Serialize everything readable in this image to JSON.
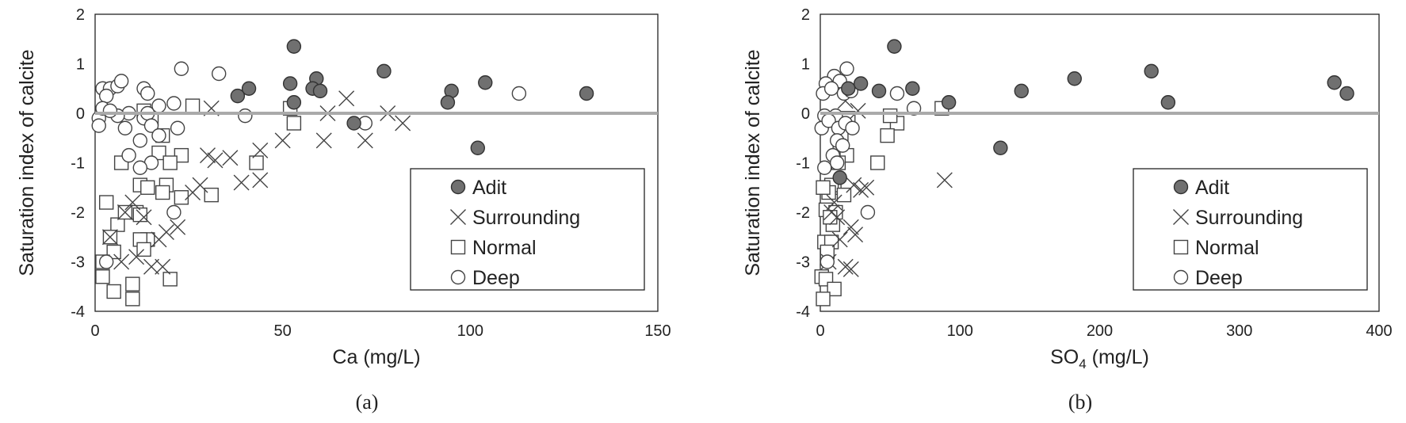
{
  "chart_data": [
    {
      "type": "scatter",
      "caption": "(a)",
      "xlabel": "Ca (mg/L)",
      "ylabel": "Saturation index of calcite",
      "xlim": [
        0,
        150
      ],
      "ylim": [
        -4,
        2
      ],
      "xticks": [
        "0",
        "50",
        "100",
        "150"
      ],
      "yticks": [
        "-4",
        "-3",
        "-2",
        "-1",
        "0",
        "1",
        "2"
      ],
      "reference_line": {
        "y": 0,
        "color": "#aaaaaa"
      },
      "legend": {
        "position": "bottom-right"
      },
      "series": [
        {
          "name": "Adit",
          "marker": "filled-circle",
          "color": "#707070",
          "points": [
            [
              53,
              1.35
            ],
            [
              52,
              0.6
            ],
            [
              59,
              0.7
            ],
            [
              58,
              0.5
            ],
            [
              60,
              0.45
            ],
            [
              53,
              0.22
            ],
            [
              41,
              0.5
            ],
            [
              38,
              0.35
            ],
            [
              77,
              0.85
            ],
            [
              95,
              0.45
            ],
            [
              94,
              0.22
            ],
            [
              104,
              0.62
            ],
            [
              102,
              -0.7
            ],
            [
              131,
              0.4
            ],
            [
              69,
              -0.2
            ]
          ]
        },
        {
          "name": "Surrounding",
          "marker": "x",
          "color": "#444444",
          "points": [
            [
              31,
              0.1
            ],
            [
              67,
              0.3
            ],
            [
              62,
              0.0
            ],
            [
              78,
              0.0
            ],
            [
              82,
              -0.2
            ],
            [
              61,
              -0.55
            ],
            [
              72,
              -0.55
            ],
            [
              50,
              -0.55
            ],
            [
              44,
              -0.75
            ],
            [
              36,
              -0.9
            ],
            [
              32,
              -0.95
            ],
            [
              30,
              -0.85
            ],
            [
              39,
              -1.4
            ],
            [
              44,
              -1.35
            ],
            [
              28,
              -1.45
            ],
            [
              26,
              -1.6
            ],
            [
              22,
              -2.3
            ],
            [
              19,
              -2.4
            ],
            [
              17,
              -2.55
            ],
            [
              15,
              -3.1
            ],
            [
              18,
              -3.1
            ],
            [
              11,
              -2.9
            ],
            [
              13,
              -2.1
            ],
            [
              8,
              -2.0
            ],
            [
              10,
              -1.8
            ],
            [
              4,
              -2.5
            ],
            [
              7,
              -3.0
            ]
          ]
        },
        {
          "name": "Normal",
          "marker": "open-square",
          "color": "#444444",
          "points": [
            [
              26,
              0.15
            ],
            [
              13,
              0.05
            ],
            [
              15,
              -0.1
            ],
            [
              18,
              -0.45
            ],
            [
              17,
              -0.8
            ],
            [
              23,
              -0.85
            ],
            [
              20,
              -1.0
            ],
            [
              19,
              -1.45
            ],
            [
              12,
              -1.45
            ],
            [
              14,
              -1.5
            ],
            [
              18,
              -1.6
            ],
            [
              23,
              -1.7
            ],
            [
              31,
              -1.65
            ],
            [
              43,
              -1.0
            ],
            [
              53,
              -0.2
            ],
            [
              52,
              0.1
            ],
            [
              7,
              -1.0
            ],
            [
              11,
              -2.0
            ],
            [
              12,
              -2.05
            ],
            [
              6,
              -2.25
            ],
            [
              3,
              -1.8
            ],
            [
              8,
              -2.0
            ],
            [
              14,
              -2.55
            ],
            [
              12,
              -2.55
            ],
            [
              13,
              -2.75
            ],
            [
              4,
              -2.5
            ],
            [
              5,
              -2.8
            ],
            [
              2,
              -3.0
            ],
            [
              2,
              -3.3
            ],
            [
              5,
              -3.6
            ],
            [
              10,
              -3.45
            ],
            [
              20,
              -3.35
            ],
            [
              10,
              -3.75
            ]
          ]
        },
        {
          "name": "Deep",
          "marker": "open-circle",
          "color": "#444444",
          "points": [
            [
              2,
              0.5
            ],
            [
              4,
              0.5
            ],
            [
              3,
              0.35
            ],
            [
              6,
              0.55
            ],
            [
              7,
              0.65
            ],
            [
              13,
              0.5
            ],
            [
              14,
              0.4
            ],
            [
              23,
              0.9
            ],
            [
              33,
              0.8
            ],
            [
              9,
              0.0
            ],
            [
              6,
              -0.05
            ],
            [
              1,
              -0.1
            ],
            [
              1,
              -0.25
            ],
            [
              2,
              0.1
            ],
            [
              4,
              0.05
            ],
            [
              8,
              -0.3
            ],
            [
              12,
              -0.55
            ],
            [
              13,
              -0.1
            ],
            [
              14,
              0.0
            ],
            [
              17,
              0.15
            ],
            [
              21,
              0.2
            ],
            [
              22,
              -0.3
            ],
            [
              15,
              -0.25
            ],
            [
              17,
              -0.45
            ],
            [
              9,
              -0.85
            ],
            [
              15,
              -1.0
            ],
            [
              12,
              -1.1
            ],
            [
              40,
              -0.05
            ],
            [
              72,
              -0.2
            ],
            [
              113,
              0.4
            ],
            [
              21,
              -2.0
            ],
            [
              3,
              -3.0
            ]
          ]
        }
      ]
    },
    {
      "type": "scatter",
      "caption": "(b)",
      "xlabel_main": "SO",
      "xlabel_sub": "4",
      "xlabel_unit": " (mg/L)",
      "ylabel": "Saturation index of calcite",
      "xlim": [
        0,
        400
      ],
      "ylim": [
        -4,
        2
      ],
      "xticks": [
        "0",
        "100",
        "200",
        "300",
        "400"
      ],
      "yticks": [
        "-4",
        "-3",
        "-2",
        "-1",
        "0",
        "1",
        "2"
      ],
      "reference_line": {
        "y": 0,
        "color": "#aaaaaa"
      },
      "legend": {
        "position": "bottom-right"
      },
      "series": [
        {
          "name": "Adit",
          "marker": "filled-circle",
          "color": "#707070",
          "points": [
            [
              53,
              1.35
            ],
            [
              29,
              0.6
            ],
            [
              20,
              0.5
            ],
            [
              42,
              0.45
            ],
            [
              66,
              0.5
            ],
            [
              92,
              0.22
            ],
            [
              144,
              0.45
            ],
            [
              182,
              0.7
            ],
            [
              237,
              0.85
            ],
            [
              249,
              0.22
            ],
            [
              368,
              0.62
            ],
            [
              377,
              0.4
            ],
            [
              129,
              -0.7
            ],
            [
              14,
              -1.3
            ]
          ]
        },
        {
          "name": "Surrounding",
          "marker": "x",
          "color": "#444444",
          "points": [
            [
              89,
              -1.35
            ],
            [
              24,
              -1.45
            ],
            [
              29,
              -1.55
            ],
            [
              33,
              -1.5
            ],
            [
              22,
              -2.3
            ],
            [
              25,
              -2.45
            ],
            [
              18,
              -3.1
            ],
            [
              22,
              -3.15
            ],
            [
              12,
              -2.1
            ],
            [
              10,
              -1.8
            ],
            [
              8,
              -2.0
            ],
            [
              14,
              -2.55
            ],
            [
              6,
              -3.0
            ],
            [
              27,
              0.05
            ],
            [
              18,
              0.25
            ]
          ]
        },
        {
          "name": "Normal",
          "marker": "open-square",
          "color": "#444444",
          "points": [
            [
              87,
              0.1
            ],
            [
              55,
              -0.2
            ],
            [
              48,
              -0.45
            ],
            [
              50,
              -0.05
            ],
            [
              41,
              -1.0
            ],
            [
              20,
              -0.1
            ],
            [
              15,
              -0.45
            ],
            [
              14,
              -0.8
            ],
            [
              19,
              -0.85
            ],
            [
              13,
              -1.0
            ],
            [
              10,
              -1.5
            ],
            [
              8,
              -1.45
            ],
            [
              17,
              -1.65
            ],
            [
              6,
              -1.6
            ],
            [
              2,
              -1.5
            ],
            [
              4,
              -1.95
            ],
            [
              9,
              -2.25
            ],
            [
              11,
              -2.0
            ],
            [
              7,
              -2.1
            ],
            [
              3,
              -2.6
            ],
            [
              8,
              -2.6
            ],
            [
              5,
              -2.8
            ],
            [
              1,
              -3.3
            ],
            [
              4,
              -3.35
            ],
            [
              10,
              -3.55
            ],
            [
              2,
              -3.75
            ]
          ]
        },
        {
          "name": "Deep",
          "marker": "open-circle",
          "color": "#444444",
          "points": [
            [
              7,
              0.6
            ],
            [
              10,
              0.75
            ],
            [
              14,
              0.65
            ],
            [
              19,
              0.9
            ],
            [
              4,
              0.6
            ],
            [
              2,
              0.4
            ],
            [
              8,
              0.5
            ],
            [
              17,
              0.4
            ],
            [
              22,
              0.45
            ],
            [
              55,
              0.4
            ],
            [
              67,
              0.1
            ],
            [
              11,
              -0.05
            ],
            [
              3,
              -0.05
            ],
            [
              1,
              -0.3
            ],
            [
              6,
              -0.15
            ],
            [
              13,
              -0.3
            ],
            [
              18,
              -0.2
            ],
            [
              23,
              -0.3
            ],
            [
              12,
              -0.55
            ],
            [
              16,
              -0.65
            ],
            [
              9,
              -0.85
            ],
            [
              12,
              -1.0
            ],
            [
              3,
              -1.1
            ],
            [
              34,
              -2.0
            ],
            [
              5,
              -3.0
            ]
          ]
        }
      ]
    }
  ]
}
